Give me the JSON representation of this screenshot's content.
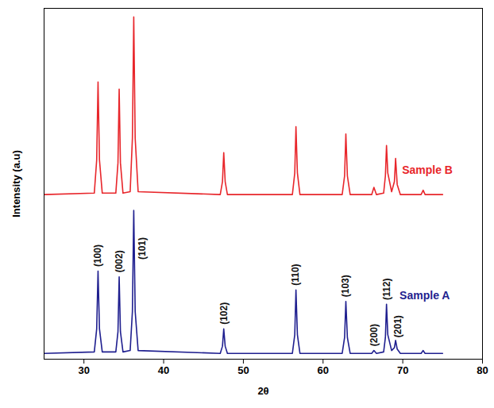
{
  "chart_data": {
    "type": "line",
    "x_label": "2θ",
    "y_label": "Intensity (a.u)",
    "xlim": [
      25,
      80
    ],
    "xticks": [
      30,
      40,
      50,
      60,
      70,
      80
    ],
    "ylim": [
      -3,
      240
    ],
    "tick_labels": "x",
    "grid": false,
    "x": [
      25,
      31.3,
      31.6,
      31.77,
      31.95,
      32.3,
      34.0,
      34.27,
      34.42,
      34.58,
      34.9,
      35.8,
      36.08,
      36.25,
      36.43,
      36.8,
      47.1,
      47.38,
      47.54,
      47.72,
      48.0,
      56.15,
      56.45,
      56.6,
      56.78,
      57.1,
      62.4,
      62.7,
      62.86,
      63.05,
      63.4,
      66.1,
      66.38,
      66.7,
      67.6,
      67.82,
      67.96,
      68.12,
      68.6,
      68.95,
      69.1,
      69.3,
      69.7,
      72.3,
      72.56,
      72.8,
      75
    ],
    "series": [
      {
        "name": "Sample A",
        "color": "#1f1f8f",
        "label_x": 69.6,
        "label_y": 41,
        "values": [
          1,
          2,
          18,
          58,
          18,
          2,
          2,
          16,
          54,
          16,
          2,
          3,
          30,
          100,
          30,
          3,
          1,
          6,
          18,
          6,
          1,
          1,
          14,
          45,
          14,
          1,
          1,
          12,
          37,
          12,
          1,
          1,
          3,
          1,
          2,
          12,
          35,
          14,
          3,
          5,
          10,
          4,
          1,
          1,
          3,
          1,
          1
        ]
      },
      {
        "name": "Sample B",
        "color": "#e8262b",
        "label_x": 69.9,
        "label_y": 128,
        "values": [
          111,
          112,
          135,
          189,
          135,
          112,
          112,
          133,
          184,
          133,
          112,
          113,
          150,
          234,
          150,
          113,
          111,
          120,
          140,
          120,
          111,
          111,
          126,
          158,
          126,
          111,
          111,
          124,
          153,
          124,
          111,
          111,
          116,
          111,
          112,
          124,
          145,
          126,
          113,
          120,
          136,
          118,
          111,
          111,
          114,
          111,
          111
        ]
      }
    ],
    "annotations": [
      {
        "text": "(100)",
        "x": 31.77,
        "y": 61
      },
      {
        "text": "(002)",
        "x": 34.42,
        "y": 57
      },
      {
        "text": "(101)",
        "x": 37.3,
        "y": 66
      },
      {
        "text": "(102)",
        "x": 47.54,
        "y": 21
      },
      {
        "text": "(110)",
        "x": 56.6,
        "y": 48
      },
      {
        "text": "(103)",
        "x": 62.86,
        "y": 40
      },
      {
        "text": "(200)",
        "x": 66.38,
        "y": 6
      },
      {
        "text": "(112)",
        "x": 67.96,
        "y": 38
      },
      {
        "text": "(201)",
        "x": 69.45,
        "y": 12
      }
    ]
  }
}
